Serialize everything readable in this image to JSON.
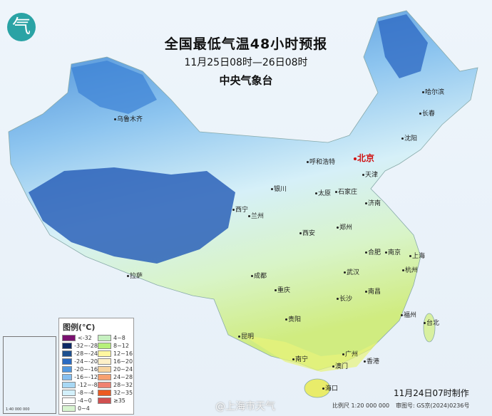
{
  "header": {
    "title": "全国最低气温48小时预报",
    "period": "11月25日08时—26日08时",
    "agency": "中央气象台"
  },
  "logo": {
    "glyph": "气"
  },
  "cities": [
    {
      "name": "北京",
      "capital": true
    },
    {
      "name": "乌鲁木齐"
    },
    {
      "name": "哈尔滨"
    },
    {
      "name": "长春"
    },
    {
      "name": "沈阳"
    },
    {
      "name": "天津"
    },
    {
      "name": "呼和浩特"
    },
    {
      "name": "石家庄"
    },
    {
      "name": "太原"
    },
    {
      "name": "银川"
    },
    {
      "name": "济南"
    },
    {
      "name": "西宁"
    },
    {
      "name": "兰州"
    },
    {
      "name": "郑州"
    },
    {
      "name": "西安"
    },
    {
      "name": "合肥"
    },
    {
      "name": "南京"
    },
    {
      "name": "上海"
    },
    {
      "name": "武汉"
    },
    {
      "name": "杭州"
    },
    {
      "name": "成都"
    },
    {
      "name": "重庆"
    },
    {
      "name": "南昌"
    },
    {
      "name": "长沙"
    },
    {
      "name": "拉萨"
    },
    {
      "name": "福州"
    },
    {
      "name": "台北"
    },
    {
      "name": "贵阳"
    },
    {
      "name": "昆明"
    },
    {
      "name": "南宁"
    },
    {
      "name": "广州"
    },
    {
      "name": "澳门"
    },
    {
      "name": "香港"
    },
    {
      "name": "海口"
    }
  ],
  "legend": {
    "title": "图例(℃)",
    "left": [
      {
        "label": "<-32",
        "color": "#7a1170"
      },
      {
        "label": "-32~-28",
        "color": "#0c2a66"
      },
      {
        "label": "-28~-24",
        "color": "#1d4f8e"
      },
      {
        "label": "-24~-20",
        "color": "#2a6ac2"
      },
      {
        "label": "-20~-16",
        "color": "#4f97e0"
      },
      {
        "label": "-16~-12",
        "color": "#86bff0"
      },
      {
        "label": "-12~-8",
        "color": "#a8d8f4"
      },
      {
        "label": "-8~-4",
        "color": "#d3f0fb"
      },
      {
        "label": "-4~0",
        "color": "#ffffff"
      },
      {
        "label": "0~4",
        "color": "#d8f4d0"
      }
    ],
    "right": [
      {
        "label": "4~8",
        "color": "#c6f0c0"
      },
      {
        "label": "8~12",
        "color": "#b6f07a"
      },
      {
        "label": "12~16",
        "color": "#fff7a0"
      },
      {
        "label": "16~20",
        "color": "#fdf0c8"
      },
      {
        "label": "20~24",
        "color": "#f7d4a0"
      },
      {
        "label": "24~28",
        "color": "#f7a070"
      },
      {
        "label": "28~32",
        "color": "#f08070"
      },
      {
        "label": "32~35",
        "color": "#ec5a20"
      },
      {
        "label": "≥35",
        "color": "#d05050"
      }
    ]
  },
  "footer": {
    "made": "11月24日07时制作",
    "scale": "比例尺 1:20 000 000",
    "review": "审图号: GS京(2024)0236号",
    "watermark": "@上海市天气",
    "inset_caption": "1:40 000 000"
  }
}
